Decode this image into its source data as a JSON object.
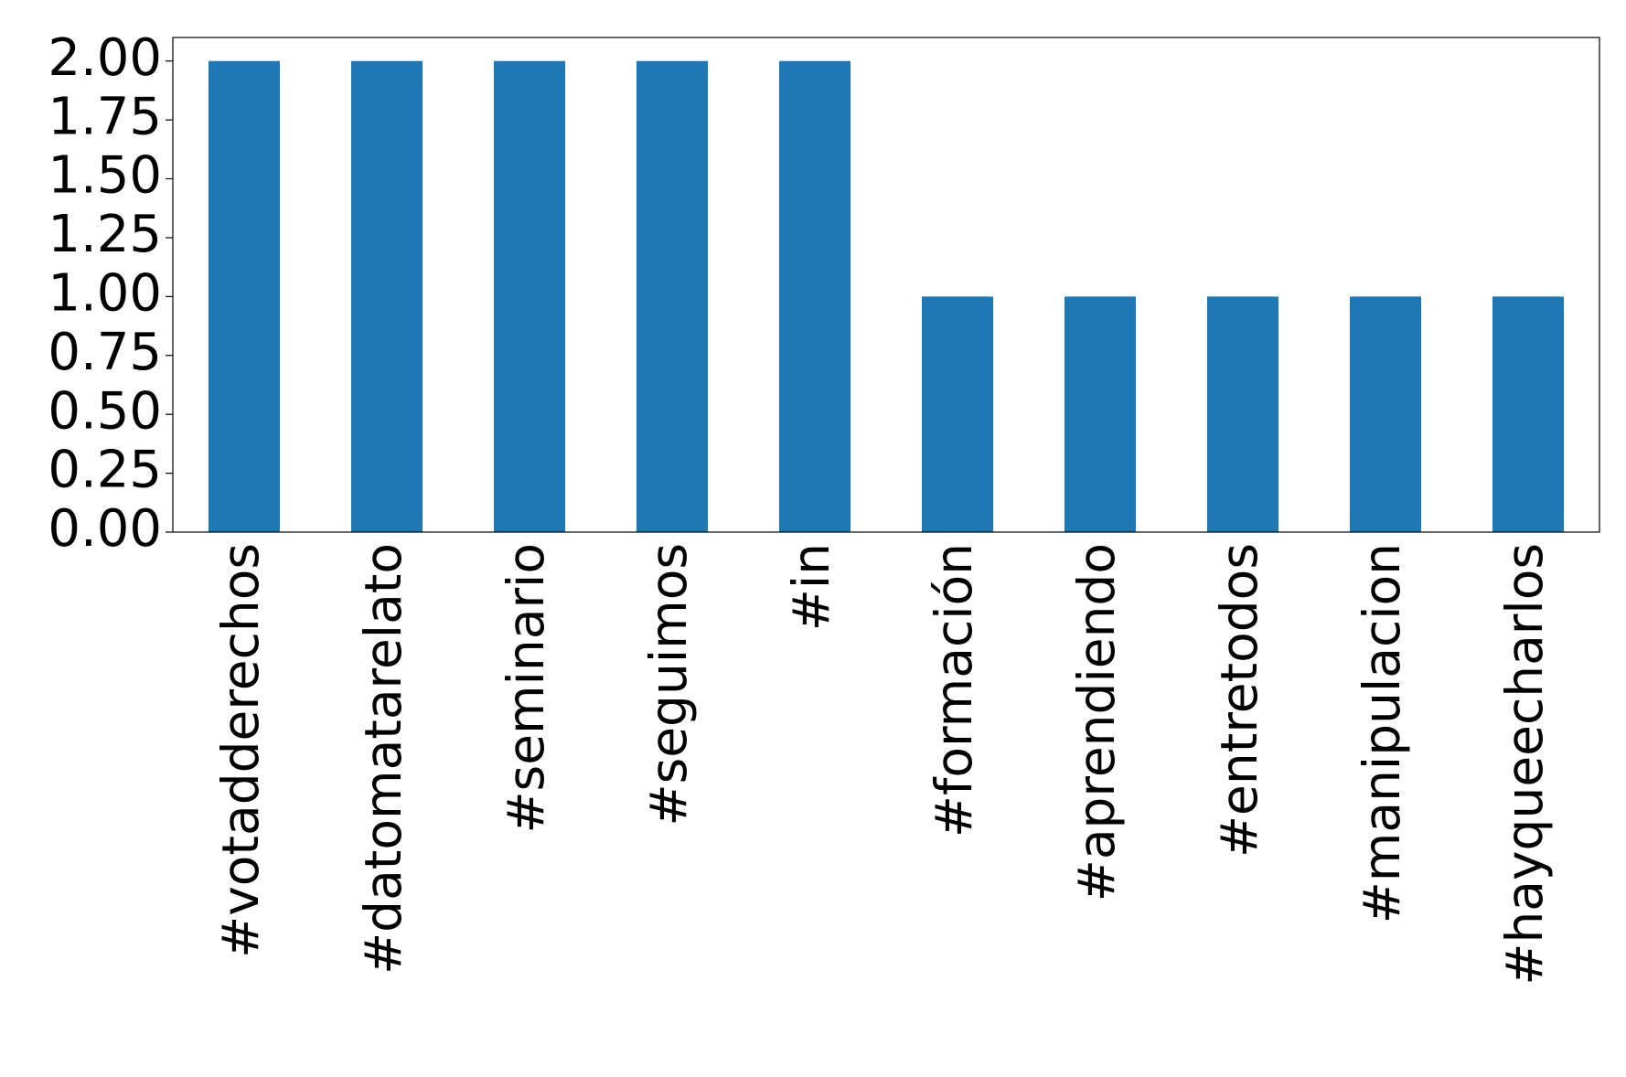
{
  "chart_data": {
    "type": "bar",
    "categories": [
      "#votadderechos",
      "#datomatarelato",
      "#seminario",
      "#seguimos",
      "#in",
      "#formación",
      "#aprendiendo",
      "#entretodos",
      "#manipulacion",
      "#hayqueecharlos"
    ],
    "values": [
      2,
      2,
      2,
      2,
      2,
      1,
      1,
      1,
      1,
      1
    ],
    "color": "#1f77b4",
    "ylim": [
      0,
      2.1
    ],
    "yticks": [
      {
        "value": 0,
        "label": "0.00"
      },
      {
        "value": 0.25,
        "label": "0.25"
      },
      {
        "value": 0.5,
        "label": "0.50"
      },
      {
        "value": 0.75,
        "label": "0.75"
      },
      {
        "value": 1,
        "label": "1.00"
      },
      {
        "value": 1.25,
        "label": "1.25"
      },
      {
        "value": 1.5,
        "label": "1.50"
      },
      {
        "value": 1.75,
        "label": "1.75"
      },
      {
        "value": 2,
        "label": "2.00"
      }
    ],
    "grid": false
  }
}
